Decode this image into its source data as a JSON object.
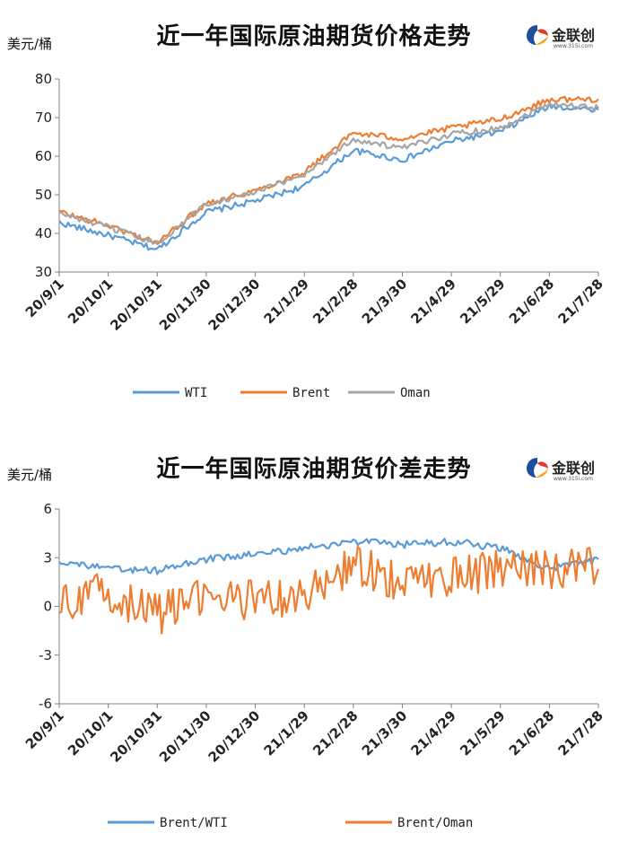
{
  "colors": {
    "wti": "#5B9BD5",
    "brent": "#ED7D31",
    "oman": "#A5A5A5",
    "axis": "#808080"
  },
  "logo": {
    "brand": "金联创",
    "url": "www.315i.com"
  },
  "chart_data": [
    {
      "type": "line",
      "title": "近一年国际原油期货价格走势",
      "unit_label": "美元/桶",
      "ylim": [
        30,
        80
      ],
      "yticks": [
        "30",
        "40",
        "50",
        "60",
        "70",
        "80"
      ],
      "x": [
        "20/9/1",
        "20/10/1",
        "20/10/31",
        "20/11/30",
        "20/12/30",
        "21/1/29",
        "21/2/28",
        "21/3/30",
        "21/4/29",
        "21/5/29",
        "21/6/28",
        "21/7/28"
      ],
      "x_tick_labels": [
        "20/9/1",
        "20/10/1",
        "20/10/31",
        "20/11/30",
        "20/12/30",
        "21/1/29",
        "21/2/28",
        "21/3/30",
        "21/4/29",
        "21/5/29",
        "21/6/28",
        "21/7/28"
      ],
      "legend_position": "bottom",
      "series": [
        {
          "name": "WTI",
          "color": "#5B9BD5",
          "values": [
            42.8,
            39.5,
            35.8,
            45.5,
            48.4,
            52.2,
            61.5,
            59.0,
            63.9,
            66.3,
            73.0,
            72.0
          ]
        },
        {
          "name": "Brent",
          "color": "#ED7D31",
          "values": [
            45.6,
            42.0,
            37.5,
            47.9,
            51.1,
            55.9,
            66.0,
            64.6,
            67.3,
            69.6,
            74.7,
            74.8
          ]
        },
        {
          "name": "Oman",
          "color": "#A5A5A5",
          "values": [
            45.2,
            41.6,
            37.3,
            47.7,
            50.6,
            55.3,
            64.4,
            62.0,
            65.8,
            67.3,
            73.7,
            72.5
          ]
        }
      ]
    },
    {
      "type": "line",
      "title": "近一年国际原油期货价差走势",
      "unit_label": "美元/桶",
      "ylim": [
        -6,
        6
      ],
      "yticks": [
        "-6",
        "-3",
        "0",
        "3",
        "6"
      ],
      "x": [
        "20/9/1",
        "20/10/1",
        "20/10/31",
        "20/11/30",
        "20/12/30",
        "21/1/29",
        "21/2/28",
        "21/3/30",
        "21/4/29",
        "21/5/29",
        "21/6/28",
        "21/7/28"
      ],
      "x_tick_labels": [
        "20/9/1",
        "20/10/1",
        "20/10/31",
        "20/11/30",
        "20/12/30",
        "21/1/29",
        "21/2/28",
        "21/3/30",
        "21/4/29",
        "21/5/29",
        "21/6/28",
        "21/7/28"
      ],
      "legend_position": "bottom",
      "series": [
        {
          "name": "Brent/WTI",
          "color": "#5B9BD5",
          "values": [
            2.8,
            2.3,
            2.2,
            2.9,
            3.2,
            3.6,
            4.0,
            3.8,
            4.0,
            3.6,
            2.3,
            2.9
          ]
        },
        {
          "name": "Brent/Oman",
          "color": "#ED7D31",
          "values": [
            0.2,
            0.9,
            -0.5,
            0.6,
            0.4,
            0.6,
            2.5,
            1.5,
            1.9,
            2.3,
            2.4,
            2.3
          ]
        }
      ]
    }
  ]
}
